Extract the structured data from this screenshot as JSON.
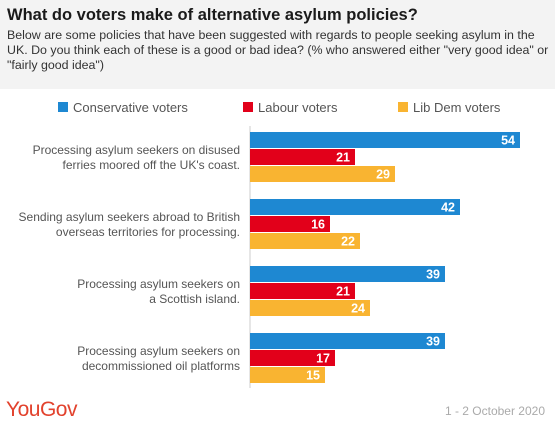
{
  "header": {
    "title": "What do voters make of alternative asylum policies?",
    "subtitle": "Below are some policies that have been suggested with regards to people seeking asylum in the UK. Do you think each of these is a good or bad idea? (% who answered either \"very good idea\" or \"fairly good idea\")"
  },
  "footer": {
    "brand": "YouGov",
    "date": "1 - 2 October 2020"
  },
  "chart_data": {
    "type": "bar",
    "orientation": "horizontal",
    "title": "What do voters make of alternative asylum policies?",
    "legend_position": "top",
    "grid": false,
    "xlim": [
      0,
      58
    ],
    "categories": [
      [
        "Processing asylum seekers on disused",
        "ferries moored off the UK's coast."
      ],
      [
        "Sending asylum seekers abroad to British",
        "overseas territories for processing."
      ],
      [
        "Processing asylum seekers on",
        "a Scottish island."
      ],
      [
        "Processing asylum seekers on",
        "decommissioned oil platforms"
      ]
    ],
    "series": [
      {
        "name": "Conservative voters",
        "color": "#1e88d2",
        "values": [
          54,
          42,
          39,
          39
        ]
      },
      {
        "name": "Labour voters",
        "color": "#e2001a",
        "values": [
          21,
          16,
          21,
          17
        ]
      },
      {
        "name": "Lib Dem voters",
        "color": "#f9b431",
        "values": [
          29,
          22,
          24,
          15
        ]
      }
    ]
  }
}
